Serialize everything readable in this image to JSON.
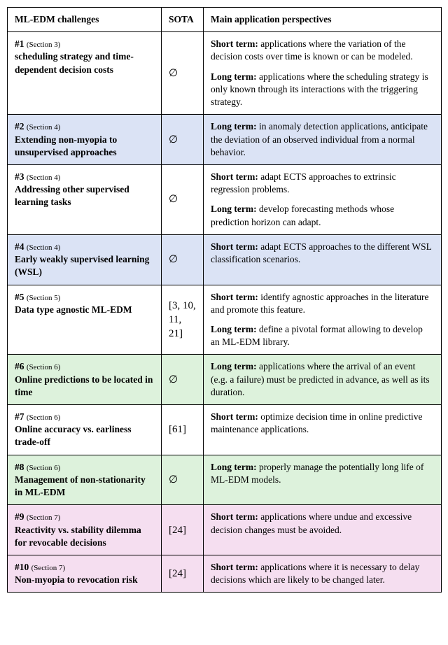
{
  "header": {
    "col1": "ML-EDM challenges",
    "col2": "SOTA",
    "col3": "Main application perspectives"
  },
  "colors": {
    "white": "#ffffff",
    "blue": "#dbe3f5",
    "green": "#ddf2dc",
    "pink": "#f5def0"
  },
  "empty": "∅",
  "rows": [
    {
      "bg": "white",
      "num": "#1",
      "sec": "(Section 3)",
      "title": "scheduling strategy and time-dependent decision costs",
      "sota": "∅",
      "persp": [
        {
          "label": "Short term:",
          "text": " applications where the variation of the decision costs over time is known or can be modeled."
        },
        {
          "label": "Long term:",
          "text": " applications where the scheduling strategy is only known through its interactions with the triggering strategy."
        }
      ]
    },
    {
      "bg": "blue",
      "num": "#2",
      "sec": "(Section 4)",
      "title": "Extending non-myopia to unsupervised approaches",
      "sota": "∅",
      "persp": [
        {
          "label": "Long term:",
          "text": " in anomaly detection applications, anticipate the deviation of an observed individual from a normal behavior."
        }
      ]
    },
    {
      "bg": "white",
      "num": "#3",
      "sec": "(Section 4)",
      "title": "Addressing other supervised learning tasks",
      "sota": "∅",
      "persp": [
        {
          "label": "Short term:",
          "text": " adapt ECTS approaches to extrinsic regression problems."
        },
        {
          "label": "Long term:",
          "text": " develop forecasting methods whose prediction horizon can adapt."
        }
      ]
    },
    {
      "bg": "blue",
      "num": "#4",
      "sec": "(Section 4)",
      "title": "Early weakly supervised learning (WSL)",
      "sota": "∅",
      "persp": [
        {
          "label": "Short term:",
          "text": " adapt ECTS approaches to the different WSL classification scenarios."
        }
      ]
    },
    {
      "bg": "white",
      "num": "#5",
      "sec": "(Section 5)",
      "title": "Data type agnostic ML-EDM",
      "sota": "[3, 10, 11, 21]",
      "persp": [
        {
          "label": "Short term:",
          "text": " identify agnostic approaches in the literature and promote this feature."
        },
        {
          "label": "Long term:",
          "text": " define a pivotal format allowing to develop an ML-EDM library."
        }
      ]
    },
    {
      "bg": "green",
      "num": "#6",
      "sec": "(Section 6)",
      "title": "Online predictions to be located in time",
      "sota": "∅",
      "persp": [
        {
          "label": "Long term:",
          "text": " applications where the arrival of an event (e.g. a failure) must be predicted in advance, as well as its duration."
        }
      ]
    },
    {
      "bg": "white",
      "num": "#7",
      "sec": "(Section 6)",
      "title": "Online accuracy vs. earliness trade-off",
      "sota": "[61]",
      "persp": [
        {
          "label": "Short term:",
          "text": " optimize decision time in online predictive maintenance applications."
        }
      ]
    },
    {
      "bg": "green",
      "num": "#8",
      "sec": "(Section 6)",
      "title": "Management of non-stationarity in ML-EDM",
      "sota": "∅",
      "persp": [
        {
          "label": "Long term:",
          "text": " properly manage the potentially long life of ML-EDM models."
        }
      ]
    },
    {
      "bg": "pink",
      "num": "#9",
      "sec": "(Section 7)",
      "title": "Reactivity vs. stability dilemma for revocable decisions",
      "sota": "[24]",
      "persp": [
        {
          "label": "Short term:",
          "text": " applications where undue and excessive decision changes must be avoided."
        }
      ]
    },
    {
      "bg": "pink",
      "num": "#10",
      "sec": "(Section 7)",
      "title": "Non-myopia to revocation risk",
      "sota": "[24]",
      "persp": [
        {
          "label": "Short term:",
          "text": " applications where it is necessary to delay decisions which are likely to be changed later."
        }
      ]
    }
  ]
}
